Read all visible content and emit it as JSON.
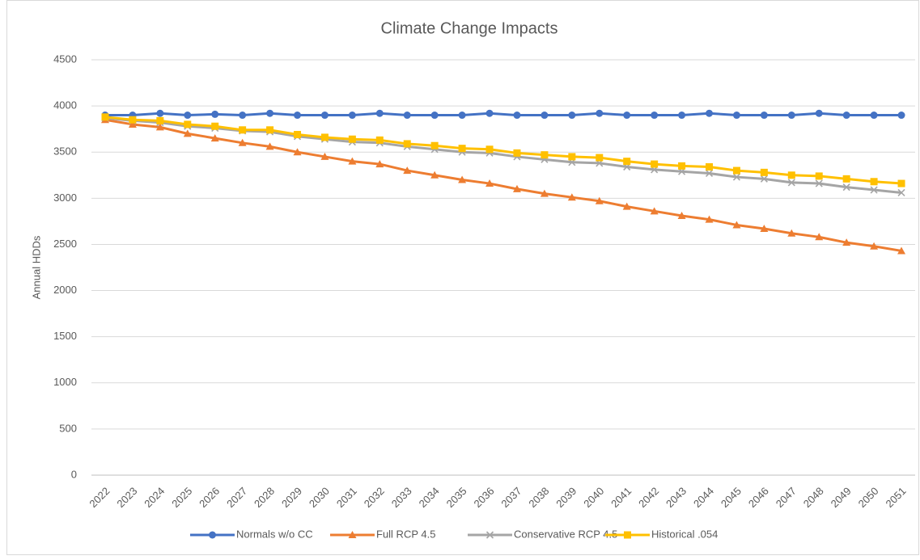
{
  "chart_data": {
    "type": "line",
    "title": "Climate Change Impacts",
    "y_label": "Annual HDDs",
    "categories": [
      "2022",
      "2023",
      "2024",
      "2025",
      "2026",
      "2027",
      "2028",
      "2029",
      "2030",
      "2031",
      "2032",
      "2033",
      "2034",
      "2035",
      "2036",
      "2037",
      "2038",
      "2039",
      "2040",
      "2041",
      "2042",
      "2043",
      "2044",
      "2045",
      "2046",
      "2047",
      "2048",
      "2049",
      "2050",
      "2051"
    ],
    "series": [
      {
        "name": "Normals w/o CC",
        "color": "#4472c4",
        "marker": "circle",
        "values": [
          3900,
          3900,
          3920,
          3900,
          3910,
          3900,
          3920,
          3900,
          3900,
          3900,
          3920,
          3900,
          3900,
          3900,
          3920,
          3900,
          3900,
          3900,
          3920,
          3900,
          3900,
          3900,
          3920,
          3900,
          3900,
          3900,
          3920,
          3900,
          3900,
          3900
        ]
      },
      {
        "name": "Full RCP 4.5",
        "color": "#ed7d31",
        "marker": "triangle",
        "values": [
          3850,
          3800,
          3770,
          3700,
          3650,
          3600,
          3560,
          3500,
          3450,
          3400,
          3370,
          3300,
          3250,
          3200,
          3160,
          3100,
          3050,
          3010,
          2970,
          2910,
          2860,
          2810,
          2770,
          2710,
          2670,
          2620,
          2580,
          2520,
          2480,
          2430
        ]
      },
      {
        "name": "Conservative RCP 4.5",
        "color": "#a5a5a5",
        "marker": "x",
        "values": [
          3870,
          3840,
          3820,
          3780,
          3760,
          3730,
          3720,
          3670,
          3640,
          3610,
          3600,
          3560,
          3530,
          3500,
          3490,
          3450,
          3420,
          3390,
          3380,
          3340,
          3310,
          3290,
          3270,
          3230,
          3210,
          3170,
          3160,
          3120,
          3090,
          3060
        ]
      },
      {
        "name": "Historical .054",
        "color": "#ffc000",
        "marker": "square",
        "values": [
          3880,
          3850,
          3840,
          3800,
          3780,
          3740,
          3740,
          3690,
          3660,
          3640,
          3630,
          3590,
          3570,
          3540,
          3530,
          3490,
          3470,
          3450,
          3440,
          3400,
          3370,
          3350,
          3340,
          3300,
          3280,
          3250,
          3240,
          3210,
          3180,
          3160
        ]
      }
    ],
    "ylim": [
      0,
      4500
    ],
    "yticks": [
      0,
      500,
      1000,
      1500,
      2000,
      2500,
      3000,
      3500,
      4000,
      4500
    ],
    "grid": true,
    "legend": "bottom"
  }
}
